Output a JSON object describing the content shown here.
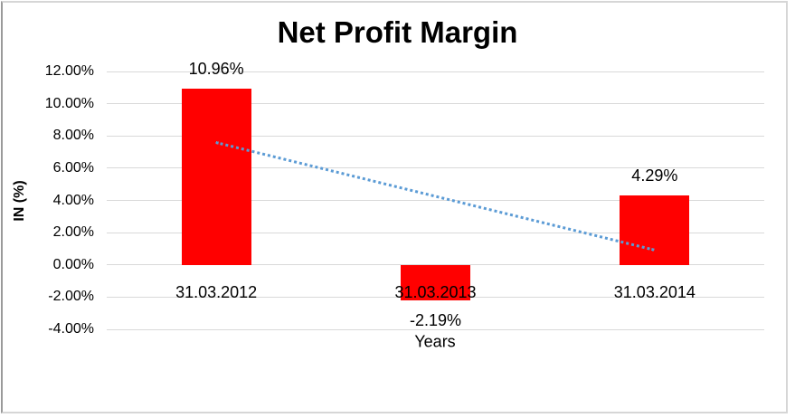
{
  "frame": {
    "border_color": "#d6d6d6"
  },
  "chart_data": {
    "type": "bar",
    "title": "Net Profit Margin",
    "xlabel": "Years",
    "ylabel": "IN (%)",
    "categories": [
      "31.03.2012",
      "31.03.2013",
      "31.03.2014"
    ],
    "series": [
      {
        "name": "Net Profit Margin",
        "color": "#ff0000",
        "values": [
          10.96,
          -2.19,
          4.29
        ]
      }
    ],
    "data_labels": [
      "10.96%",
      "-2.19%",
      "4.29%"
    ],
    "y_ticks": [
      {
        "value": 12,
        "label": "12.00%"
      },
      {
        "value": 10,
        "label": "10.00%"
      },
      {
        "value": 8,
        "label": "8.00%"
      },
      {
        "value": 6,
        "label": "6.00%"
      },
      {
        "value": 4,
        "label": "4.00%"
      },
      {
        "value": 2,
        "label": "2.00%"
      },
      {
        "value": 0,
        "label": "0.00%"
      },
      {
        "value": -2,
        "label": "-2.00%"
      },
      {
        "value": -4,
        "label": "-4.00%"
      }
    ],
    "ylim": [
      -4,
      12
    ],
    "grid": true,
    "gridline_color": "#d9d9d9",
    "legend_position": "none",
    "trendline": {
      "type": "linear",
      "style": "dotted",
      "color": "#5b9bd5",
      "start_value": 7.69,
      "end_value": 1.02
    }
  }
}
